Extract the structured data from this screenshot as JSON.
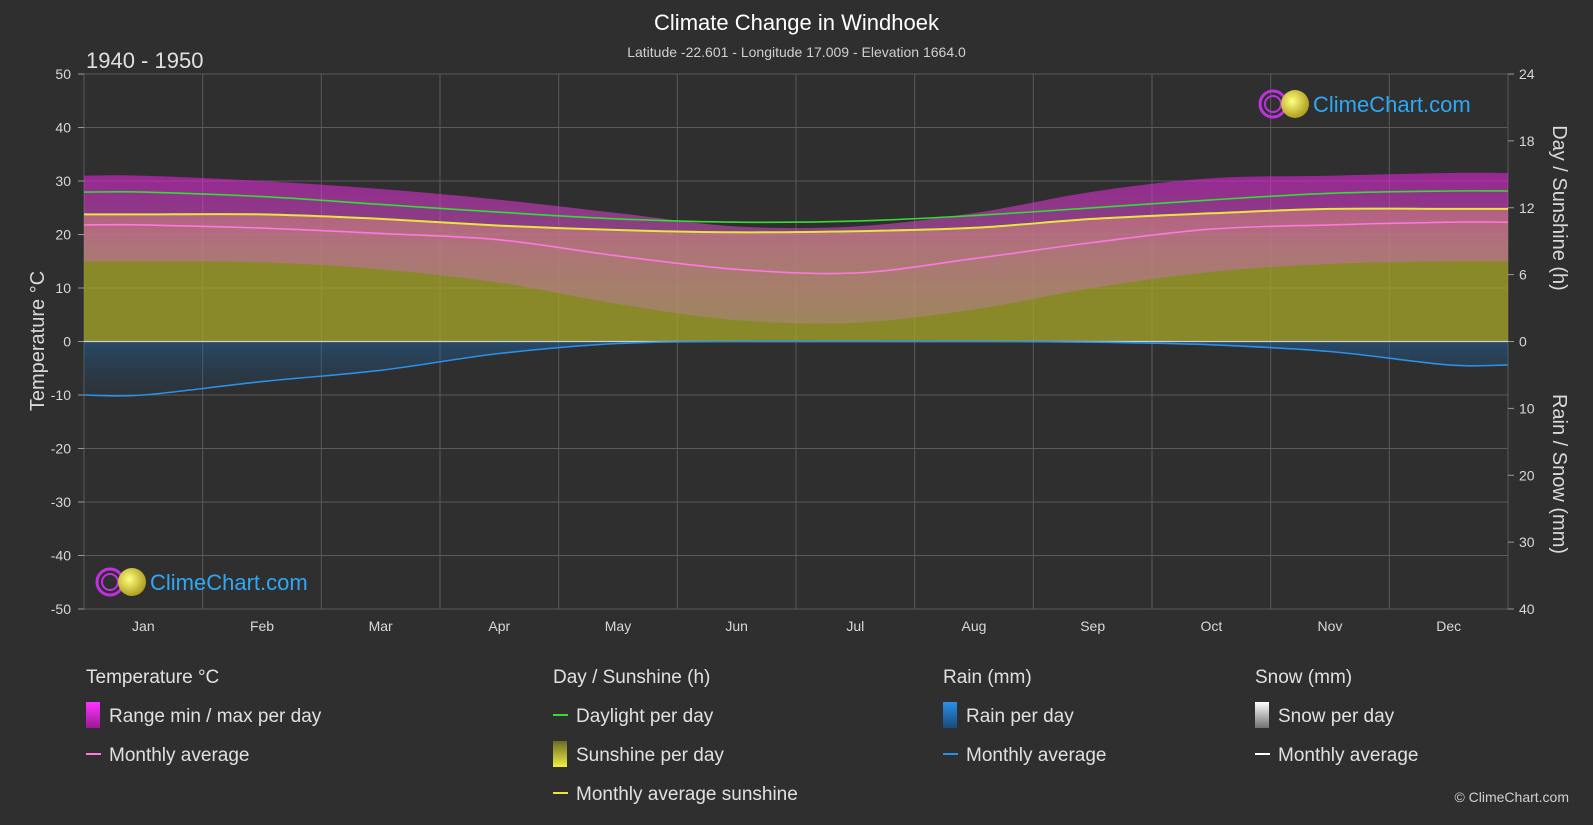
{
  "header": {
    "title": "Climate Change in Windhoek",
    "subtitle": "Latitude -22.601 - Longitude 17.009 - Elevation 1664.0",
    "period": "1940 - 1950"
  },
  "axes": {
    "left_label": "Temperature °C",
    "right_top_label": "Day / Sunshine (h)",
    "right_bottom_label": "Rain / Snow (mm)"
  },
  "logo": {
    "text": "ClimeChart.com"
  },
  "copyright": "© ClimeChart.com",
  "legend": {
    "temperature": {
      "heading": "Temperature °C",
      "range": "Range min / max per day",
      "avg": "Monthly average"
    },
    "sun": {
      "heading": "Day / Sunshine (h)",
      "daylight": "Daylight per day",
      "sunshine": "Sunshine per day",
      "avg": "Monthly average sunshine"
    },
    "rain": {
      "heading": "Rain (mm)",
      "per_day": "Rain per day",
      "avg": "Monthly average"
    },
    "snow": {
      "heading": "Snow (mm)",
      "per_day": "Snow per day",
      "avg": "Monthly average"
    }
  },
  "colors": {
    "background": "#2f2f2f",
    "grid": "#5a5a5a",
    "temp_range": "#d81ed2",
    "temp_avg": "#ff77e0",
    "daylight": "#33dd33",
    "sunshine_fill": "#a8a82a",
    "sunshine_avg": "#e6e640",
    "rain": "#1e78c8",
    "rain_avg": "#2a90e8",
    "snow": "#ffffff"
  },
  "chart_data": {
    "type": "area",
    "categories": [
      "Jan",
      "Feb",
      "Mar",
      "Apr",
      "May",
      "Jun",
      "Jul",
      "Aug",
      "Sep",
      "Oct",
      "Nov",
      "Dec"
    ],
    "y_left": {
      "min": -50,
      "max": 50,
      "ticks": [
        50,
        40,
        30,
        20,
        10,
        0,
        -10,
        -20,
        -30,
        -40,
        -50
      ]
    },
    "y_right_hours": {
      "min": 0,
      "max": 24,
      "ticks": [
        24,
        18,
        12,
        6,
        0
      ]
    },
    "y_right_mm": {
      "min": 0,
      "max": 40,
      "ticks": [
        10,
        20,
        30,
        40
      ]
    },
    "series": [
      {
        "name": "Daylight per day",
        "unit": "h",
        "values": [
          13.4,
          13.0,
          12.3,
          11.6,
          11.0,
          10.7,
          10.8,
          11.3,
          12.0,
          12.7,
          13.3,
          13.5
        ]
      },
      {
        "name": "Monthly average sunshine",
        "unit": "h",
        "values": [
          11.4,
          11.4,
          11.0,
          10.4,
          10.0,
          9.8,
          9.9,
          10.2,
          11.0,
          11.5,
          11.9,
          11.9
        ]
      },
      {
        "name": "Temperature monthly average",
        "unit": "°C",
        "values": [
          21.8,
          21.2,
          20.2,
          19.0,
          16.0,
          13.5,
          12.8,
          15.5,
          18.5,
          21.0,
          21.8,
          22.3
        ]
      },
      {
        "name": "Temperature max per day",
        "unit": "°C",
        "values": [
          31.0,
          30.0,
          28.5,
          26.5,
          24.0,
          21.5,
          21.5,
          24.0,
          28.0,
          30.5,
          31.0,
          31.5
        ]
      },
      {
        "name": "Temperature min per day",
        "unit": "°C",
        "values": [
          15.0,
          14.8,
          13.5,
          11.0,
          7.0,
          4.0,
          3.5,
          6.0,
          10.0,
          13.0,
          14.5,
          15.0
        ]
      },
      {
        "name": "Rain monthly average",
        "unit": "mm",
        "values": [
          8.0,
          6.0,
          4.3,
          1.8,
          0.3,
          0.0,
          0.0,
          0.0,
          0.1,
          0.5,
          1.5,
          3.5
        ]
      }
    ]
  }
}
